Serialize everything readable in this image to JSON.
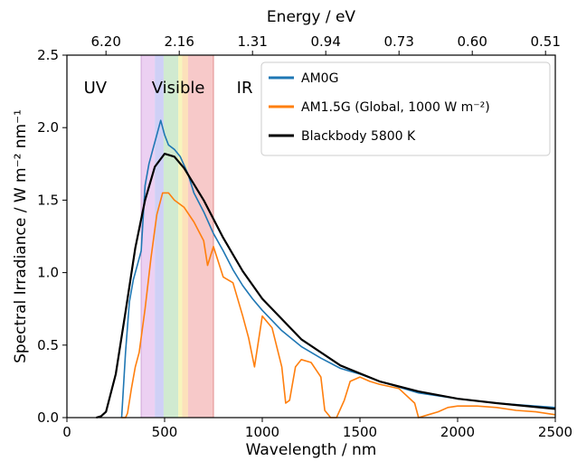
{
  "chart_data": {
    "type": "line",
    "xlabel": "Wavelength / nm",
    "ylabel": "Spectral Irradiance / W m⁻² nm⁻¹",
    "top_xlabel": "Energy / eV",
    "xlim": [
      0,
      2500
    ],
    "ylim": [
      0,
      2.5
    ],
    "x_ticks": [
      "0",
      "500",
      "1000",
      "1500",
      "2000",
      "2500"
    ],
    "y_ticks": [
      "0.0",
      "0.5",
      "1.0",
      "1.5",
      "2.0",
      "2.5"
    ],
    "top_ticks": [
      {
        "wavelength": 200,
        "label": "6.20"
      },
      {
        "wavelength": 575,
        "label": "2.16"
      },
      {
        "wavelength": 950,
        "label": "1.31"
      },
      {
        "wavelength": 1325,
        "label": "0.94"
      },
      {
        "wavelength": 1700,
        "label": "0.73"
      },
      {
        "wavelength": 2075,
        "label": "0.60"
      },
      {
        "wavelength": 2450,
        "label": "0.51"
      }
    ],
    "regions": [
      {
        "label": "UV",
        "x": 145
      },
      {
        "label": "Visible",
        "x": 570
      },
      {
        "label": "IR",
        "x": 910
      }
    ],
    "visible_bands": [
      {
        "x0": 380,
        "x1": 450,
        "color": "#e9c8f0"
      },
      {
        "x0": 450,
        "x1": 495,
        "color": "#c7c8f4"
      },
      {
        "x0": 495,
        "x1": 570,
        "color": "#c8e6c8"
      },
      {
        "x0": 570,
        "x1": 590,
        "color": "#f5f3b0"
      },
      {
        "x0": 590,
        "x1": 620,
        "color": "#fbdcae"
      },
      {
        "x0": 620,
        "x1": 750,
        "color": "#f6c0c0"
      }
    ],
    "legend_position": "top-right",
    "series": [
      {
        "name": "AM0G",
        "color": "#1f77b4",
        "x": [
          280,
          300,
          320,
          340,
          360,
          380,
          400,
          420,
          440,
          460,
          480,
          500,
          520,
          550,
          580,
          620,
          650,
          700,
          750,
          800,
          850,
          900,
          950,
          1000,
          1100,
          1200,
          1300,
          1400,
          1500,
          1600,
          1800,
          2000,
          2200,
          2500
        ],
        "y": [
          0.0,
          0.45,
          0.8,
          0.95,
          1.05,
          1.15,
          1.6,
          1.75,
          1.85,
          1.95,
          2.05,
          1.95,
          1.88,
          1.85,
          1.8,
          1.68,
          1.55,
          1.42,
          1.27,
          1.15,
          1.02,
          0.91,
          0.82,
          0.74,
          0.6,
          0.49,
          0.41,
          0.34,
          0.3,
          0.25,
          0.17,
          0.13,
          0.1,
          0.07
        ]
      },
      {
        "name": "AM1.5G (Global, 1000 W m⁻²)",
        "color": "#ff7f0e",
        "x": [
          280,
          300,
          310,
          330,
          350,
          370,
          400,
          430,
          460,
          490,
          520,
          550,
          600,
          650,
          700,
          720,
          750,
          800,
          850,
          900,
          930,
          960,
          1000,
          1050,
          1100,
          1120,
          1140,
          1170,
          1200,
          1250,
          1300,
          1320,
          1350,
          1380,
          1420,
          1450,
          1500,
          1550,
          1600,
          1700,
          1780,
          1800,
          1850,
          1900,
          1950,
          2000,
          2100,
          2200,
          2300,
          2400,
          2500
        ],
        "y": [
          0.0,
          0.0,
          0.03,
          0.2,
          0.35,
          0.45,
          0.75,
          1.1,
          1.4,
          1.55,
          1.55,
          1.5,
          1.45,
          1.35,
          1.22,
          1.05,
          1.18,
          0.97,
          0.93,
          0.7,
          0.55,
          0.35,
          0.7,
          0.62,
          0.35,
          0.1,
          0.12,
          0.35,
          0.4,
          0.38,
          0.28,
          0.05,
          0.0,
          0.0,
          0.12,
          0.25,
          0.28,
          0.25,
          0.23,
          0.2,
          0.1,
          0.0,
          0.02,
          0.04,
          0.07,
          0.08,
          0.08,
          0.07,
          0.05,
          0.04,
          0.02
        ]
      },
      {
        "name": "Blackbody 5800 K",
        "color": "#000000",
        "x": [
          150,
          175,
          200,
          250,
          300,
          350,
          400,
          450,
          500,
          550,
          600,
          700,
          800,
          900,
          1000,
          1200,
          1400,
          1600,
          1800,
          2000,
          2200,
          2500
        ],
        "y": [
          0.0,
          0.01,
          0.04,
          0.3,
          0.73,
          1.17,
          1.5,
          1.73,
          1.82,
          1.8,
          1.72,
          1.5,
          1.24,
          1.01,
          0.82,
          0.54,
          0.36,
          0.25,
          0.18,
          0.13,
          0.1,
          0.06
        ]
      }
    ]
  }
}
